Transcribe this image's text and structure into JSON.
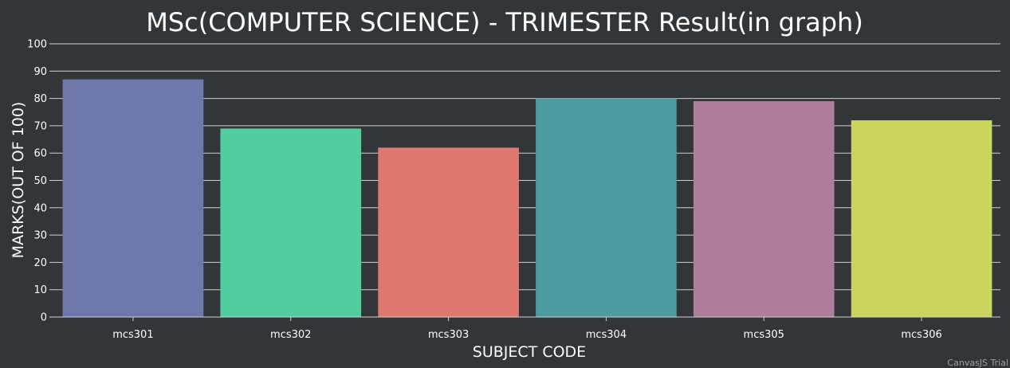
{
  "chart_data": {
    "type": "bar",
    "title": "MSc(COMPUTER SCIENCE) - TRIMESTER Result(in graph)",
    "xlabel": "SUBJECT CODE",
    "ylabel": "MARKS(OUT OF 100)",
    "categories": [
      "mcs301",
      "mcs302",
      "mcs303",
      "mcs304",
      "mcs305",
      "mcs306"
    ],
    "values": [
      87,
      69,
      62,
      80,
      79,
      72
    ],
    "colors": [
      "#6d78ad",
      "#51cda0",
      "#df7970",
      "#4c9ca0",
      "#ae7d99",
      "#c9d45c"
    ],
    "ylim": [
      0,
      100
    ],
    "yticks": [
      "0",
      "10",
      "20",
      "30",
      "40",
      "50",
      "60",
      "70",
      "80",
      "90",
      "100"
    ],
    "grid": true,
    "legend": "none"
  },
  "theme": {
    "background": "#323639",
    "gridline": "#d0d0d0",
    "text": "#ffffff"
  },
  "credit": "CanvasJS Trial"
}
